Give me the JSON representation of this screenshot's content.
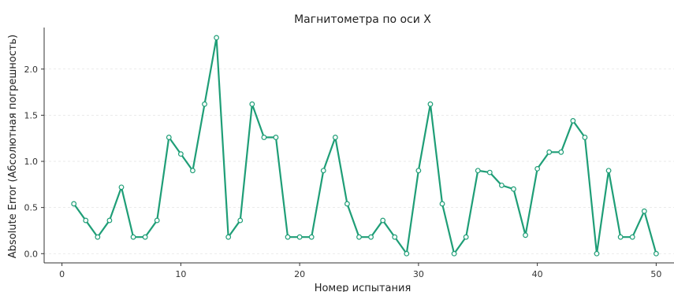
{
  "chart_data": {
    "type": "line",
    "title": "Магнитометра по оси X",
    "xlabel": "Номер испытания",
    "ylabel": "Absolute Error (Абсолютная погрешность)",
    "xlim": [
      -1.5,
      51.5
    ],
    "ylim": [
      -0.1,
      2.45
    ],
    "xticks": [
      0,
      10,
      20,
      30,
      40,
      50
    ],
    "yticks": [
      0.0,
      0.5,
      1.0,
      1.5,
      2.0
    ],
    "xtick_labels": [
      "0",
      "10",
      "20",
      "30",
      "40",
      "50"
    ],
    "ytick_labels": [
      "0.0",
      "0.5",
      "1.0",
      "1.5",
      "2.0"
    ],
    "grid": "horizontal dashed",
    "legend": "none",
    "color": "#1f9e77",
    "series": [
      {
        "x": [
          1,
          2,
          3,
          4,
          5,
          6,
          7,
          8,
          9,
          10,
          11,
          12,
          13,
          14,
          15,
          16,
          17,
          18,
          19,
          20,
          21,
          22,
          23,
          24,
          25,
          26,
          27,
          28,
          29,
          30,
          31,
          32,
          33,
          34,
          35,
          36,
          37,
          38,
          39,
          40,
          41,
          42,
          43,
          44,
          45,
          46,
          47,
          48,
          49,
          50
        ],
        "values": [
          0.54,
          0.36,
          0.18,
          0.36,
          0.72,
          0.18,
          0.18,
          0.36,
          1.26,
          1.08,
          0.9,
          1.62,
          2.34,
          0.18,
          0.36,
          1.62,
          1.26,
          1.26,
          0.18,
          0.18,
          0.18,
          0.9,
          1.26,
          0.54,
          0.18,
          0.18,
          0.36,
          0.18,
          0.0,
          0.9,
          1.62,
          0.54,
          0.0,
          0.18,
          0.9,
          0.88,
          0.74,
          0.7,
          0.2,
          0.92,
          1.1,
          1.1,
          1.44,
          1.26,
          0.0,
          0.9,
          0.18,
          0.18,
          0.46,
          0.0
        ]
      }
    ]
  }
}
